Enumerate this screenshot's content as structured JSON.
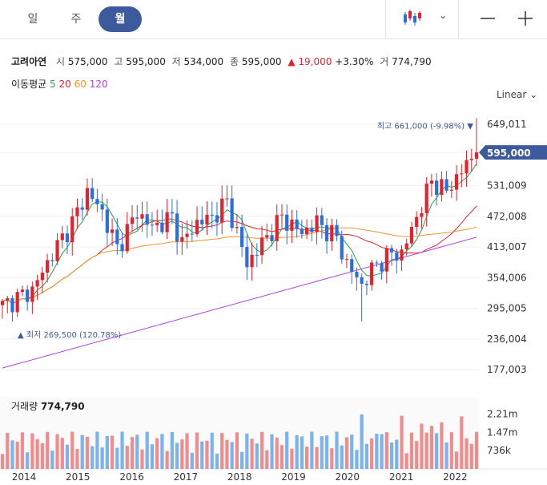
{
  "tabs": [
    {
      "label": "일",
      "active": false
    },
    {
      "label": "주",
      "active": false
    },
    {
      "label": "월",
      "active": true
    }
  ],
  "toolbar": {
    "chart_type_icon": "candlestick-icon",
    "dropdown_icon": "chevron-down-icon",
    "zoom_out_icon": "minus-icon",
    "zoom_in_icon": "plus-icon"
  },
  "stock": {
    "name": "고려아연",
    "open_label": "시",
    "open": "575,000",
    "high_label": "고",
    "high": "595,000",
    "low_label": "저",
    "low": "534,000",
    "close_label": "종",
    "close": "595,000",
    "change": "▲ 19,000",
    "change_pct": "+3.30%",
    "volume_label": "거",
    "volume": "774,790"
  },
  "ma_legend": {
    "label": "이동평균",
    "periods": [
      {
        "label": "5",
        "color": "#22a34a"
      },
      {
        "label": "20",
        "color": "#e0232d"
      },
      {
        "label": "60",
        "color": "#f0952a"
      },
      {
        "label": "120",
        "color": "#b040e8"
      }
    ]
  },
  "scale_selector": "Linear",
  "chart_data": {
    "type": "candlestick",
    "price_axis_ticks": [
      "649,011",
      "595,000",
      "531,009",
      "472,008",
      "413,007",
      "354,006",
      "295,005",
      "236,004",
      "177,003"
    ],
    "current_price": "595,000",
    "max_annotation": {
      "label": "최고",
      "value": "661,000 (-9.98%)",
      "marker": "▼"
    },
    "min_annotation": {
      "label": "최저",
      "value": "269,500 (120.78%)",
      "marker": "▲"
    },
    "volume_title": "거래량",
    "volume_value": "774,790",
    "volume_axis_ticks": [
      "2.21m",
      "1.47m",
      "736k"
    ],
    "x_axis_ticks": [
      "2014",
      "2015",
      "2016",
      "2017",
      "2018",
      "2019",
      "2020",
      "2021",
      "2022"
    ],
    "ylim": [
      140000,
      680000
    ],
    "volume_max": 2900000,
    "colors": {
      "up": "#e0232d",
      "down": "#2a6fe0",
      "vol_up": "#f28b8b",
      "vol_down": "#7ab3ee"
    }
  }
}
